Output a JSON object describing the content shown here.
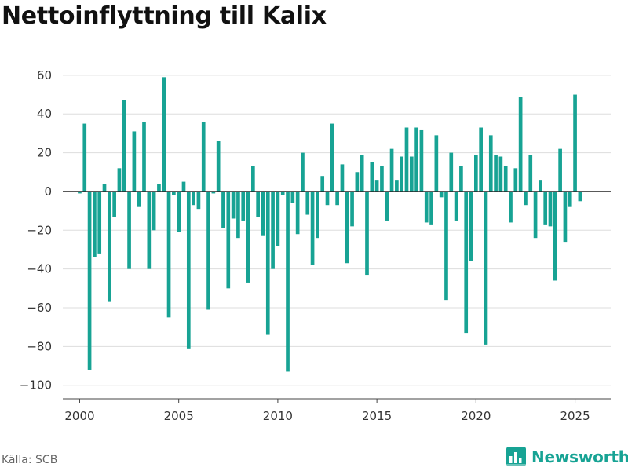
{
  "title": "Nettoinflyttning till Kalix",
  "source": "Källa: SCB",
  "brand": {
    "name": "Newsworthy",
    "color": "#17a394",
    "logo_icon": "bar-chart-badge-icon"
  },
  "colors": {
    "bar": "#17a394",
    "grid": "#dddddd",
    "zero_line": "#222222"
  },
  "chart_data": {
    "type": "bar",
    "title": "Nettoinflyttning till Kalix",
    "xlabel": "",
    "ylabel": "",
    "ylim": [
      -107,
      64
    ],
    "xlim": [
      1999.15,
      2026.8
    ],
    "grid": true,
    "legend": "none",
    "yticks": [
      60,
      40,
      20,
      0,
      -20,
      -40,
      -60,
      -80,
      -100
    ],
    "ytick_labels": [
      "60",
      "40",
      "20",
      "0",
      "−20",
      "−40",
      "−60",
      "−80",
      "−100"
    ],
    "xticks": [
      2000,
      2005,
      2010,
      2015,
      2020,
      2025
    ],
    "xtick_labels": [
      "2000",
      "2005",
      "2010",
      "2015",
      "2020",
      "2025"
    ],
    "series": [
      {
        "x": [
          2000.0,
          2000.25,
          2000.5,
          2000.75,
          2001.0,
          2001.25,
          2001.5,
          2001.75,
          2002.0,
          2002.25,
          2002.5,
          2002.75,
          2003.0,
          2003.25,
          2003.5,
          2003.75,
          2004.0,
          2004.25,
          2004.5,
          2004.75,
          2005.0,
          2005.25,
          2005.5,
          2005.75,
          2006.0,
          2006.25,
          2006.5,
          2006.75,
          2007.0,
          2007.25,
          2007.5,
          2007.75,
          2008.0,
          2008.25,
          2008.5,
          2008.75,
          2009.0,
          2009.25,
          2009.5,
          2009.75,
          2010.0,
          2010.25,
          2010.5,
          2010.75,
          2011.0,
          2011.25,
          2011.5,
          2011.75,
          2012.0,
          2012.25,
          2012.5,
          2012.75,
          2013.0,
          2013.25,
          2013.5,
          2013.75,
          2014.0,
          2014.25,
          2014.5,
          2014.75,
          2015.0,
          2015.25,
          2015.5,
          2015.75,
          2016.0,
          2016.25,
          2016.5,
          2016.75,
          2017.0,
          2017.25,
          2017.5,
          2017.75,
          2018.0,
          2018.25,
          2018.5,
          2018.75,
          2019.0,
          2019.25,
          2019.5,
          2019.75,
          2020.0,
          2020.25,
          2020.5,
          2020.75,
          2021.0,
          2021.25,
          2021.5,
          2021.75,
          2022.0,
          2022.25,
          2022.5,
          2022.75,
          2023.0,
          2023.25,
          2023.5,
          2023.75,
          2024.0,
          2024.25,
          2024.5,
          2024.75,
          2025.0,
          2025.25
        ],
        "values": [
          -1,
          35,
          -92,
          -34,
          -32,
          4,
          -57,
          -13,
          12,
          47,
          -40,
          31,
          -8,
          36,
          -40,
          -20,
          4,
          59,
          -65,
          -2,
          -21,
          5,
          -81,
          -7,
          -9,
          36,
          -61,
          -1,
          26,
          -19,
          -50,
          -14,
          -24,
          -15,
          -47,
          13,
          -13,
          -23,
          -74,
          -40,
          -28,
          -2,
          -93,
          -6,
          -22,
          20,
          -12,
          -38,
          -24,
          8,
          -7,
          35,
          -7,
          14,
          -37,
          -18,
          10,
          19,
          -43,
          15,
          6,
          13,
          -15,
          22,
          6,
          18,
          33,
          18,
          33,
          32,
          -16,
          -17,
          29,
          -3,
          -56,
          20,
          -15,
          13,
          -73,
          -36,
          19,
          33,
          -79,
          29,
          19,
          18,
          13,
          -16,
          12,
          49,
          -7,
          19,
          -24,
          6,
          -17,
          -18,
          -46,
          22,
          -26,
          -8,
          50,
          -5
        ]
      }
    ]
  }
}
